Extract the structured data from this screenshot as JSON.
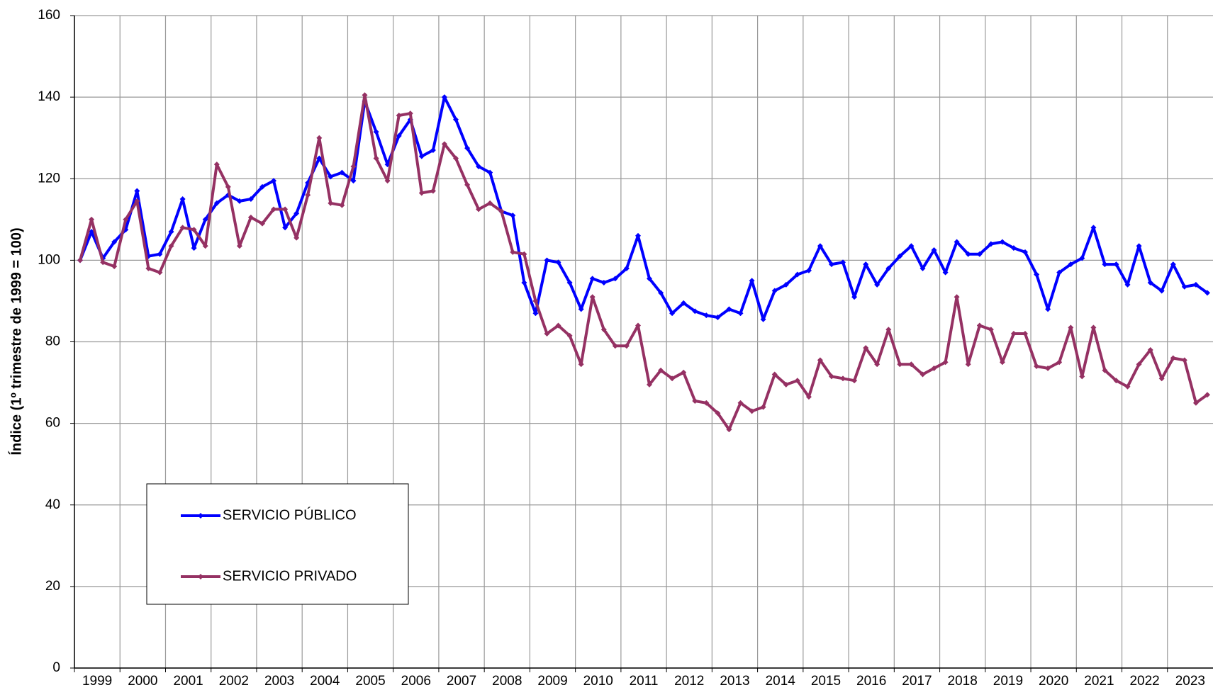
{
  "chart_data": {
    "type": "line",
    "y_label": "Índice (1º trimestre de 1999 = 100)",
    "categories": [
      "1999",
      null,
      null,
      null,
      "2000",
      null,
      null,
      null,
      "2001",
      null,
      null,
      null,
      "2002",
      null,
      null,
      null,
      "2003",
      null,
      null,
      null,
      "2004",
      null,
      null,
      null,
      "2005",
      null,
      null,
      null,
      "2006",
      null,
      null,
      null,
      "2007",
      null,
      null,
      null,
      "2008",
      null,
      null,
      null,
      "2009",
      null,
      null,
      null,
      "2010",
      null,
      null,
      null,
      "2011",
      null,
      null,
      null,
      "2012",
      null,
      null,
      null,
      "2013",
      null,
      null,
      null,
      "2014",
      null,
      null,
      null,
      "2015",
      null,
      null,
      null,
      "2016",
      null,
      null,
      null,
      "2017",
      null,
      null,
      null,
      "2018",
      null,
      null,
      null,
      "2019",
      null,
      null,
      null,
      "2020",
      null,
      null,
      null,
      "2021",
      null,
      null,
      null,
      "2022",
      null,
      null,
      null,
      "2023",
      null,
      null,
      null
    ],
    "series": [
      {
        "name": "SERVICIO PÚBLICO",
        "color": "#0000ff",
        "values": [
          100,
          107,
          100.5,
          104.5,
          107.5,
          117,
          101,
          101.5,
          107,
          115,
          103,
          110,
          114,
          116,
          114.5,
          115,
          118,
          119.5,
          108,
          111.5,
          119,
          125,
          120.5,
          121.5,
          119.5,
          139,
          131.5,
          123.5,
          130.5,
          134.5,
          125.5,
          127,
          140,
          134.5,
          127.5,
          123,
          121.5,
          112,
          111,
          94.5,
          87,
          100,
          99.5,
          94.5,
          88,
          95.5,
          94.5,
          95.5,
          98,
          106,
          95.5,
          92,
          87,
          89.5,
          87.5,
          86.5,
          86,
          88,
          87,
          95,
          85.5,
          92.5,
          94,
          96.5,
          97.5,
          103.5,
          99,
          99.5,
          91,
          99,
          94,
          98,
          101,
          103.5,
          98,
          102.5,
          97,
          104.5,
          101.5,
          101.5,
          104,
          104.5,
          103,
          102,
          96.5,
          88,
          97,
          99,
          100.5,
          108,
          99,
          99,
          94,
          103.5,
          94.5,
          92.5,
          99,
          93.5,
          94,
          92
        ]
      },
      {
        "name": "SERVICIO PRIVADO",
        "color": "#953163",
        "values": [
          100,
          110,
          99.5,
          98.5,
          110,
          114.5,
          98,
          97,
          103.5,
          108,
          107.5,
          103.5,
          123.5,
          118,
          103.5,
          110.5,
          109,
          112.5,
          112.5,
          105.5,
          116,
          130,
          114,
          113.5,
          123,
          140.5,
          125,
          119.5,
          135.5,
          136,
          116.5,
          117,
          128.5,
          125,
          118.5,
          112.5,
          114,
          112,
          102,
          101.5,
          90,
          82,
          84,
          81.5,
          74.5,
          91,
          83,
          79,
          79,
          84,
          69.5,
          73,
          71,
          72.5,
          65.5,
          65,
          62.5,
          58.5,
          65,
          63,
          64,
          72,
          69.5,
          70.5,
          66.5,
          75.5,
          71.5,
          71,
          70.5,
          78.5,
          74.5,
          83,
          74.5,
          74.5,
          72,
          73.5,
          75,
          91,
          74.5,
          84,
          83,
          75,
          82,
          82,
          74,
          73.5,
          75,
          83.5,
          71.5,
          83.5,
          73,
          70.5,
          69,
          74.5,
          78,
          71,
          76,
          75.5,
          65,
          67
        ]
      }
    ],
    "ylim": [
      0,
      160
    ],
    "yticks": [
      0,
      20,
      40,
      60,
      80,
      100,
      120,
      140,
      160
    ],
    "grid": true,
    "legend": "lower left"
  }
}
